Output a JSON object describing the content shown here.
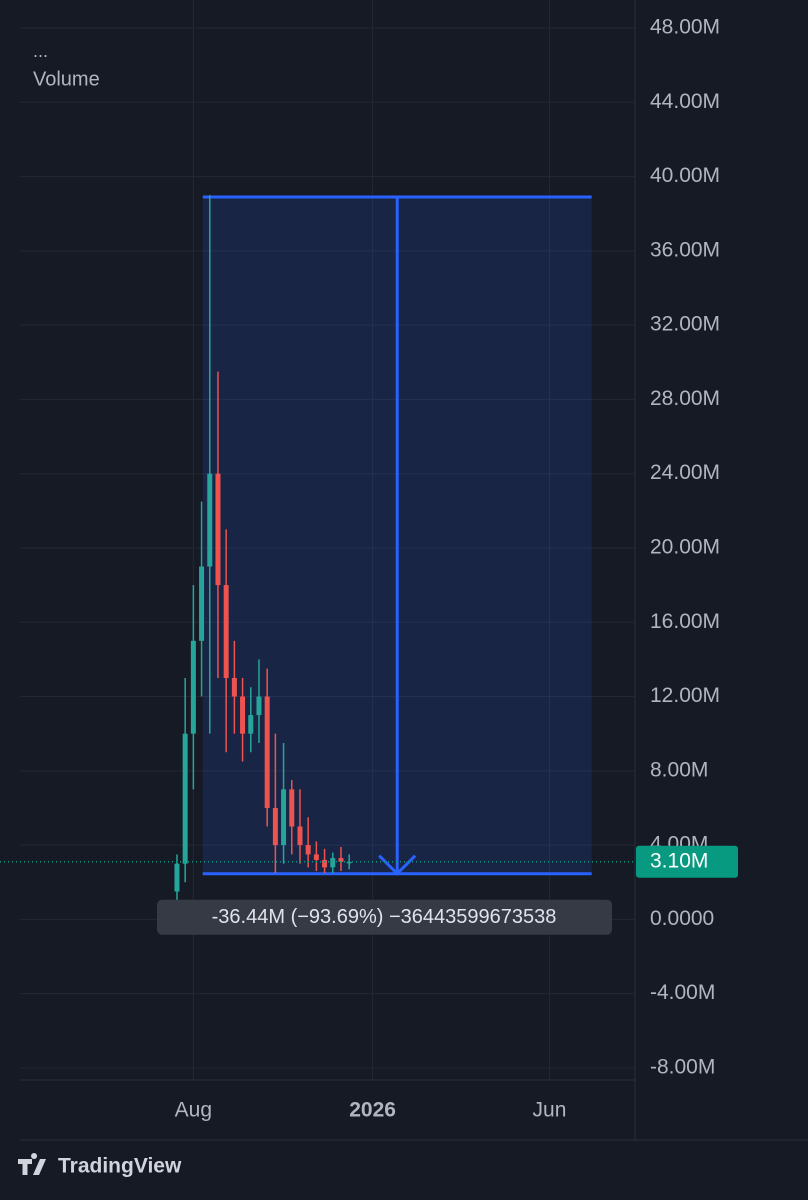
{
  "chart_data": {
    "type": "candlestick",
    "legend_dots": "...",
    "title": "Volume",
    "x": [
      "2025-07-18",
      "2025-07-25",
      "2025-08-01",
      "2025-08-08",
      "2025-08-15",
      "2025-08-22",
      "2025-08-29",
      "2025-09-05",
      "2025-09-12",
      "2025-09-19",
      "2025-09-26",
      "2025-10-03",
      "2025-10-10",
      "2025-10-17",
      "2025-10-24",
      "2025-10-31",
      "2025-11-07",
      "2025-11-14",
      "2025-11-21",
      "2025-11-28",
      "2025-12-05",
      "2025-12-12"
    ],
    "open": [
      1500000,
      3000000,
      10000000,
      15000000,
      19000000,
      24000000,
      18000000,
      13000000,
      12000000,
      10000000,
      11000000,
      12000000,
      6000000,
      4000000,
      7000000,
      5000000,
      4000000,
      3500000,
      3200000,
      2800000,
      3300000,
      3100000
    ],
    "high": [
      3500000,
      13000000,
      18000000,
      22500000,
      39000000,
      29500000,
      21000000,
      15000000,
      13000000,
      12500000,
      14000000,
      13500000,
      10000000,
      9500000,
      7500000,
      7000000,
      5500000,
      4200000,
      3800000,
      3600000,
      3900000,
      3500000
    ],
    "low": [
      900000,
      2000000,
      7000000,
      12000000,
      10000000,
      13000000,
      9000000,
      10000000,
      8500000,
      9000000,
      9500000,
      5000000,
      2500000,
      3000000,
      3500000,
      3000000,
      2800000,
      2600000,
      2500000,
      2500000,
      2600000,
      2700000
    ],
    "close": [
      3000000,
      10000000,
      15000000,
      19000000,
      24000000,
      18000000,
      13000000,
      12000000,
      10000000,
      11000000,
      12000000,
      6000000,
      4000000,
      7000000,
      5000000,
      4000000,
      3500000,
      3200000,
      2800000,
      3300000,
      3100000,
      3100000
    ],
    "up_color": "#26a69a",
    "down_color": "#ef5350",
    "xlim": [
      "2025-03-06",
      "2026-08-13"
    ],
    "xticks": [
      {
        "value": "2025-08-01",
        "label": "Aug"
      },
      {
        "value": "2026-01-01",
        "label": "2026"
      },
      {
        "value": "2026-06-01",
        "label": "Jun"
      }
    ],
    "ylim": [
      -8650000,
      48540000
    ],
    "yticks": [
      {
        "value": 48000000,
        "label": "48.00M"
      },
      {
        "value": 44000000,
        "label": "44.00M"
      },
      {
        "value": 40000000,
        "label": "40.00M"
      },
      {
        "value": 36000000,
        "label": "36.00M"
      },
      {
        "value": 32000000,
        "label": "32.00M"
      },
      {
        "value": 28000000,
        "label": "28.00M"
      },
      {
        "value": 24000000,
        "label": "24.00M"
      },
      {
        "value": 20000000,
        "label": "20.00M"
      },
      {
        "value": 16000000,
        "label": "16.00M"
      },
      {
        "value": 12000000,
        "label": "12.00M"
      },
      {
        "value": 8000000,
        "label": "8.00M"
      },
      {
        "value": 4000000,
        "label": "4.00M"
      },
      {
        "value": 0,
        "label": "0.0000"
      },
      {
        "value": -4000000,
        "label": "-4.00M"
      },
      {
        "value": -8000000,
        "label": "-8.00M"
      }
    ],
    "grid": true,
    "last_price": {
      "value": 3100000,
      "label": "3.10M",
      "color": "#089981"
    },
    "measure": {
      "start": "2025-08-09",
      "end": "2026-07-07",
      "from": 38900000,
      "to": 2460000,
      "color": "#2962ff",
      "label": "-36.44M (−93.69%) −36443599673538"
    },
    "brand": "TradingView"
  }
}
